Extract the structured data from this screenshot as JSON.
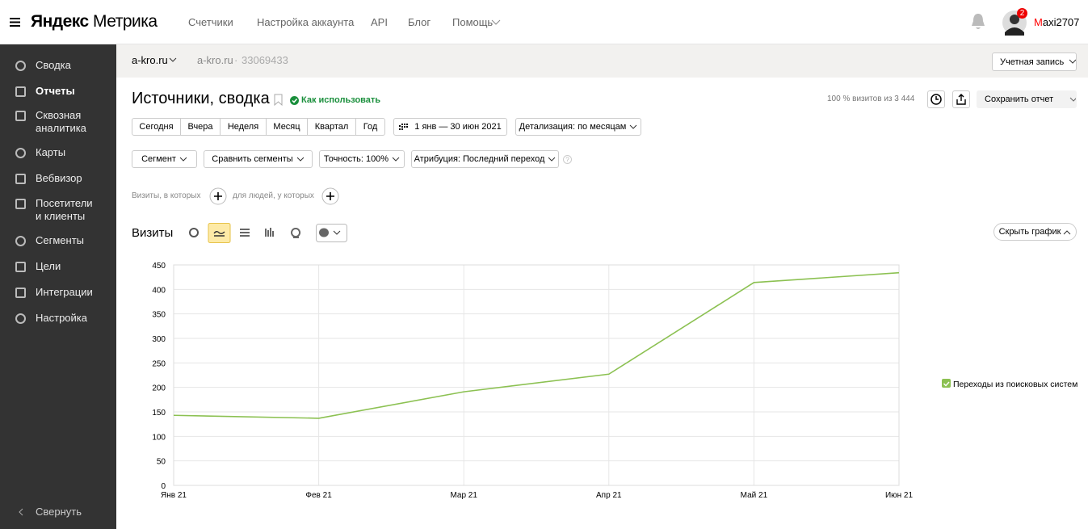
{
  "header": {
    "logo_brand": "Яндекс",
    "logo_product": "Метрика",
    "nav": [
      "Счетчики",
      "Настройка аккаунта",
      "API",
      "Блог",
      "Помощь"
    ],
    "notifications": "2",
    "user": "Maxi2707"
  },
  "sidebar": {
    "items": [
      "Сводка",
      "Отчеты",
      "Сквозная аналитика",
      "Карты",
      "Вебвизор",
      "Посетители и клиенты",
      "Сегменты",
      "Цели",
      "Интеграции",
      "Настройка"
    ],
    "collapse": "Свернуть"
  },
  "subheader": {
    "counter": "a-kro.ru",
    "site": "a-kro.ru",
    "separator": "·",
    "counter_id": "33069433",
    "account": "Учетная запись"
  },
  "report": {
    "title": "Источники, сводка",
    "help": "Как использовать",
    "sampling": "100 % визитов из 3 444",
    "save": "Сохранить отчет",
    "periods": [
      "Сегодня",
      "Вчера",
      "Неделя",
      "Месяц",
      "Квартал",
      "Год"
    ],
    "date_range": "1 янв — 30 июн 2021",
    "detail": "Детализация: по месяцам",
    "filters": [
      "Сегмент",
      "Сравнить сегменты",
      "Точность: 100%",
      "Атрибуция: Последний переход"
    ],
    "visits_condition": "Визиты, в которых",
    "people_condition": "для людей, у которых",
    "metric": "Визиты",
    "hide_chart": "Скрыть график"
  },
  "chart_data": {
    "type": "line",
    "categories": [
      "Янв 21",
      "Фев 21",
      "Мар 21",
      "Апр 21",
      "Май 21",
      "Июн 21"
    ],
    "series": [
      {
        "name": "Переходы из поисковых систем",
        "color": "#8cc152",
        "values": [
          143,
          137,
          191,
          227,
          414,
          434
        ]
      }
    ],
    "ylim": [
      0,
      450
    ],
    "yticks": [
      0,
      50,
      100,
      150,
      200,
      250,
      300,
      350,
      400,
      450
    ],
    "grid": true,
    "legend": "right"
  }
}
